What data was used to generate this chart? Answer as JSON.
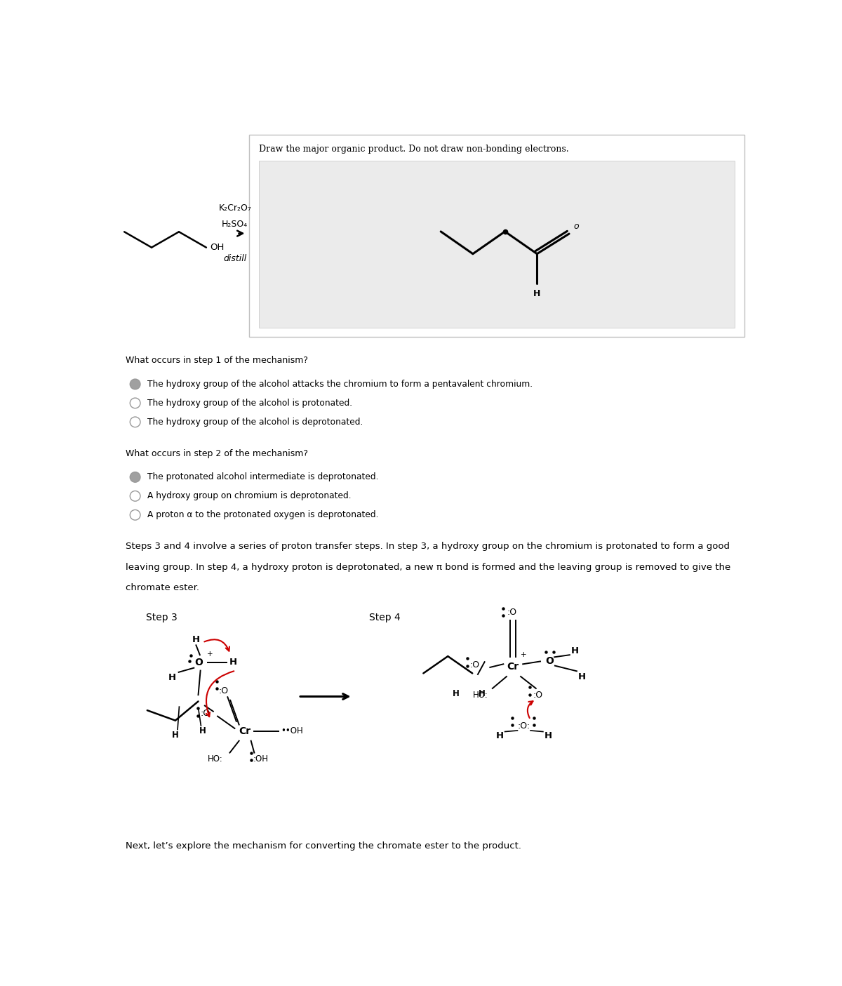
{
  "background_color": "#ffffff",
  "page_width": 12.0,
  "page_height": 14.05,
  "top_box_title": "Draw the major organic product. Do not draw non-bonding electrons.",
  "step1_question": "What occurs in step 1 of the mechanism?",
  "step1_options": [
    {
      "text": "The hydroxy group of the alcohol attacks the chromium to form a pentavalent chromium.",
      "selected": true
    },
    {
      "text": "The hydroxy group of the alcohol is protonated.",
      "selected": false
    },
    {
      "text": "The hydroxy group of the alcohol is deprotonated.",
      "selected": false
    }
  ],
  "step2_question": "What occurs in step 2 of the mechanism?",
  "step2_options": [
    {
      "text": "The protonated alcohol intermediate is deprotonated.",
      "selected": true
    },
    {
      "text": "A hydroxy group on chromium is deprotonated.",
      "selected": false
    },
    {
      "text": "A proton α to the protonated oxygen is deprotonated.",
      "selected": false
    }
  ],
  "steps34_line1": "Steps 3 and 4 involve a series of proton transfer steps. In step 3, a hydroxy group on the chromium is protonated to form a good",
  "steps34_line2": "leaving group. In step 4, a hydroxy proton is deprotonated, a new π bond is formed and the leaving group is removed to give the",
  "steps34_line3": "chromate ester.",
  "step3_label": "Step 3",
  "step4_label": "Step 4",
  "bottom_text": "Next, let’s explore the mechanism for converting the chromate ester to the product.",
  "radio_selected_color": "#a0a0a0",
  "radio_unselected_color": "#ffffff",
  "radio_edge_color": "#999999",
  "text_color": "#000000",
  "red_color": "#cc0000"
}
